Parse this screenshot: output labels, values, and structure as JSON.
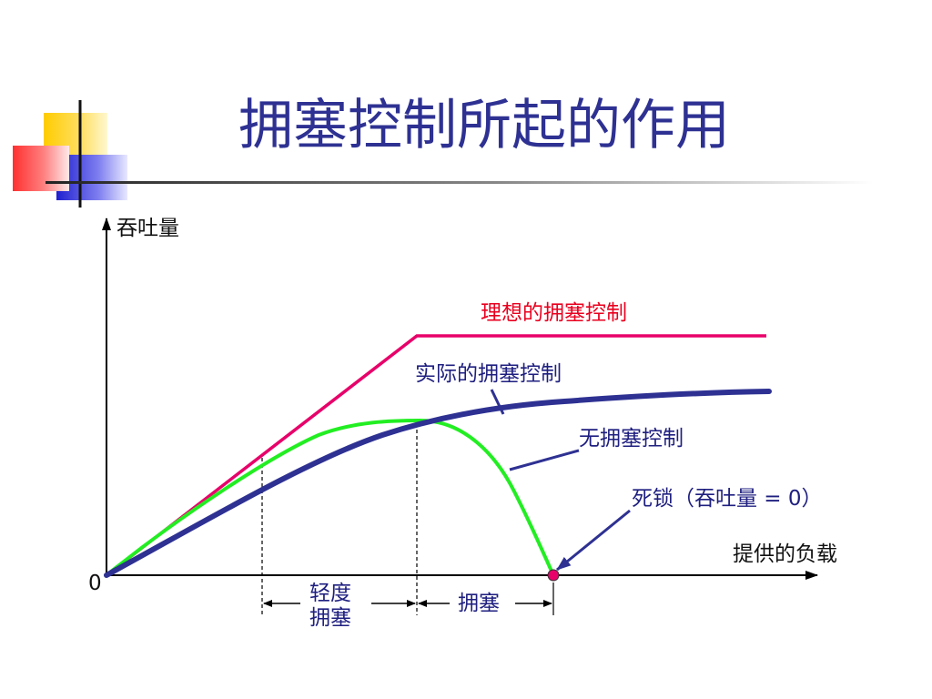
{
  "slide": {
    "title": "拥塞控制所起的作用"
  },
  "diagram": {
    "y_axis_label": "吞吐量",
    "x_axis_label": "提供的负载",
    "origin_label": "0",
    "curves": {
      "ideal": "理想的拥塞控制",
      "actual": "实际的拥塞控制",
      "none": "无拥塞控制",
      "deadlock": "死锁（吞吐量 = 0）"
    },
    "regions": {
      "light_line1": "轻度",
      "light_line2": "拥塞",
      "congestion": "拥塞"
    }
  },
  "colors": {
    "title": "#2E3192",
    "ideal_curve": "#E8006A",
    "actual_curve": "#2E3192",
    "no_control_curve": "#22EE22",
    "axis": "#000000",
    "label_navy": "#1F1F80",
    "label_red": "#E8001F",
    "deco_yellow": "#FFCC00",
    "deco_red": "#FF4A4A",
    "deco_blue": "#3333DD"
  }
}
